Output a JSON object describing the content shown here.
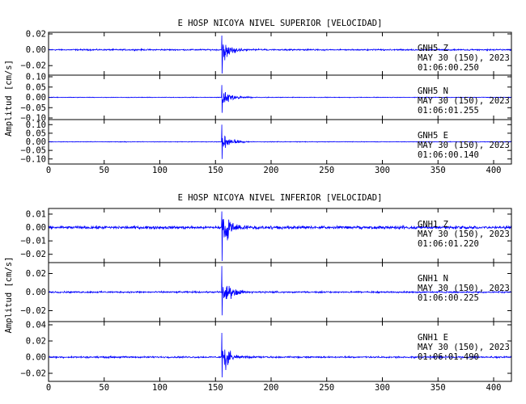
{
  "chart_data": [
    {
      "type": "line",
      "title": "E HOSP NICOYA NIVEL SUPERIOR [VELOCIDAD]",
      "ylabel": "Amplitud [cm/s]",
      "xlabel": "",
      "xlim": [
        0,
        416
      ],
      "xticks": [
        0,
        50,
        100,
        150,
        200,
        250,
        300,
        350,
        400
      ],
      "grid": false,
      "series": [
        {
          "name": "GNH5 Z",
          "station": "GNH5",
          "component": "Z",
          "date": "MAY 30 (150), 2023",
          "time": "01:06:00.250",
          "ylim": [
            -0.03,
            0.02
          ],
          "yticks": [
            -0.02,
            0.0,
            0.02
          ],
          "ytick_labels": [
            "−0.02",
            "0.00",
            "0.02"
          ],
          "noise": 0.0007,
          "onset": 155.5,
          "peak_pos": 0.018,
          "peak_neg": -0.03,
          "duration": 30,
          "color": "#0000ff"
        },
        {
          "name": "GNH5 N",
          "station": "GNH5",
          "component": "N",
          "date": "MAY 30 (150), 2023",
          "time": "01:06:01.255",
          "ylim": [
            -0.1,
            0.1
          ],
          "yticks": [
            -0.1,
            -0.05,
            0.0,
            0.05,
            0.1
          ],
          "ytick_labels": [
            "−0.10",
            "−0.05",
            "0.00",
            "0.05",
            "0.10"
          ],
          "noise": 0.0012,
          "onset": 155.5,
          "peak_pos": 0.06,
          "peak_neg": -0.075,
          "duration": 35,
          "color": "#0000ff"
        },
        {
          "name": "GNH5 E",
          "station": "GNH5",
          "component": "E",
          "date": "MAY 30 (150), 2023",
          "time": "01:06:00.140",
          "ylim": [
            -0.12,
            0.12
          ],
          "yticks": [
            -0.1,
            -0.05,
            0.0,
            0.05,
            0.1
          ],
          "ytick_labels": [
            "−0.10",
            "−0.05",
            "0.00",
            "0.05",
            "0.10"
          ],
          "noise": 0.0015,
          "onset": 155.5,
          "peak_pos": 0.1,
          "peak_neg": -0.1,
          "duration": 30,
          "color": "#0000ff"
        }
      ]
    },
    {
      "type": "line",
      "title": "E HOSP NICOYA NIVEL INFERIOR [VELOCIDAD]",
      "ylabel": "Amplitud [cm/s]",
      "xlabel": "",
      "xlim": [
        0,
        416
      ],
      "xticks": [
        0,
        50,
        100,
        150,
        200,
        250,
        300,
        350,
        400
      ],
      "grid": false,
      "series": [
        {
          "name": "GNH1 Z",
          "station": "GNH1",
          "component": "Z",
          "date": "MAY 30 (150), 2023",
          "time": "01:06:01.220",
          "ylim": [
            -0.025,
            0.013
          ],
          "yticks": [
            -0.02,
            -0.01,
            0.0,
            0.01
          ],
          "ytick_labels": [
            "−0.02",
            "−0.01",
            "0.00",
            "0.01"
          ],
          "noise": 0.0009,
          "onset": 155.5,
          "peak_pos": 0.012,
          "peak_neg": -0.025,
          "duration": 30,
          "color": "#0000ff"
        },
        {
          "name": "GNH1 N",
          "station": "GNH1",
          "component": "N",
          "date": "MAY 30 (150), 2023",
          "time": "01:06:00.225",
          "ylim": [
            -0.03,
            0.03
          ],
          "yticks": [
            -0.02,
            0.0,
            0.02
          ],
          "ytick_labels": [
            "−0.02",
            "0.00",
            "0.02"
          ],
          "noise": 0.0007,
          "onset": 155.5,
          "peak_pos": 0.028,
          "peak_neg": -0.025,
          "duration": 30,
          "color": "#0000ff"
        },
        {
          "name": "GNH1 E",
          "station": "GNH1",
          "component": "E",
          "date": "MAY 30 (150), 2023",
          "time": "01:06:01.490",
          "ylim": [
            -0.028,
            0.042
          ],
          "yticks": [
            -0.02,
            0.0,
            0.02,
            0.04
          ],
          "ytick_labels": [
            "−0.02",
            "0.00",
            "0.02",
            "0.04"
          ],
          "noise": 0.0008,
          "onset": 155.5,
          "peak_pos": 0.03,
          "peak_neg": -0.025,
          "duration": 30,
          "color": "#0000ff"
        }
      ]
    }
  ]
}
